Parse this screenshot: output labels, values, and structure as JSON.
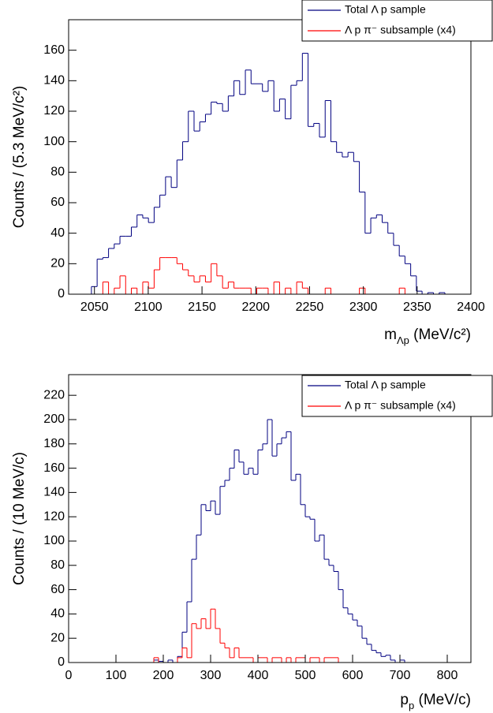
{
  "chart_data": [
    {
      "type": "histogram",
      "y_label": "Counts / (5.3 MeV/c²)",
      "x_label": [
        "m",
        "Λp",
        " (MeV/c²)"
      ],
      "bins": [
        2026.0,
        2031.3,
        2036.6,
        2041.9,
        2047.2,
        2052.5,
        2057.8,
        2063.1,
        2068.4,
        2073.7,
        2079.0,
        2084.3,
        2089.6,
        2094.9,
        2100.2,
        2105.5,
        2110.8,
        2116.1,
        2121.4,
        2126.7,
        2132.0,
        2137.3,
        2142.6,
        2147.9,
        2153.2,
        2158.5,
        2163.8,
        2169.1,
        2174.4,
        2179.7,
        2185.0,
        2190.3,
        2195.6,
        2200.9,
        2206.2,
        2211.5,
        2216.8,
        2222.1,
        2227.4,
        2232.7,
        2238.0,
        2243.3,
        2248.6,
        2253.9,
        2259.2,
        2264.5,
        2269.8,
        2275.1,
        2280.4,
        2285.7,
        2291.0,
        2296.3,
        2301.6,
        2306.9,
        2312.2,
        2317.5,
        2322.8,
        2328.1,
        2333.4,
        2338.7,
        2344.0,
        2349.3,
        2354.6,
        2359.9,
        2365.2,
        2370.5,
        2375.8,
        2381.1,
        2386.4,
        2391.7,
        2397.0
      ],
      "series": [
        {
          "name": "Total Λ p sample",
          "color": "#000080",
          "values": [
            0,
            0,
            0,
            0,
            5,
            23,
            24,
            30,
            33,
            38,
            38,
            44,
            52,
            50,
            47,
            57,
            65,
            77,
            70,
            88,
            100,
            120,
            107,
            113,
            118,
            126,
            125,
            120,
            130,
            140,
            131,
            147,
            138,
            138,
            133,
            140,
            120,
            128,
            115,
            137,
            140,
            158,
            110,
            112,
            103,
            127,
            100,
            93,
            90,
            93,
            87,
            67,
            40,
            50,
            52,
            47,
            40,
            32,
            25,
            20,
            12,
            2,
            0,
            1,
            0,
            1,
            0,
            0,
            0,
            0
          ]
        },
        {
          "name": "Λ p π⁻ subsample (x4)",
          "color": "#ff0000",
          "values": [
            0,
            0,
            0,
            0,
            0,
            0,
            8,
            0,
            4,
            12,
            0,
            4,
            0,
            8,
            4,
            16,
            24,
            24,
            24,
            20,
            16,
            12,
            8,
            12,
            8,
            20,
            12,
            4,
            8,
            4,
            4,
            4,
            0,
            4,
            4,
            0,
            8,
            0,
            4,
            0,
            8,
            4,
            0,
            0,
            0,
            4,
            0,
            0,
            0,
            0,
            0,
            4,
            0,
            0,
            0,
            0,
            0,
            0,
            4,
            0,
            0,
            0,
            0,
            0,
            0,
            0,
            0,
            0,
            0,
            0
          ]
        }
      ],
      "xlim": [
        2026,
        2400
      ],
      "xticks": [
        2050,
        2100,
        2150,
        2200,
        2250,
        2300,
        2350,
        2400
      ],
      "ylim": [
        0,
        180
      ],
      "yticks": [
        0,
        20,
        40,
        60,
        80,
        100,
        120,
        140,
        160
      ],
      "legend": "top-right"
    },
    {
      "type": "histogram",
      "y_label": "Counts / (10 MeV/c)",
      "x_label": [
        "p",
        "p",
        " (MeV/c)"
      ],
      "bins": [
        0,
        10,
        20,
        30,
        40,
        50,
        60,
        70,
        80,
        90,
        100,
        110,
        120,
        130,
        140,
        150,
        160,
        170,
        180,
        190,
        200,
        210,
        220,
        230,
        240,
        250,
        260,
        270,
        280,
        290,
        300,
        310,
        320,
        330,
        340,
        350,
        360,
        370,
        380,
        390,
        400,
        410,
        420,
        430,
        440,
        450,
        460,
        470,
        480,
        490,
        500,
        510,
        520,
        530,
        540,
        550,
        560,
        570,
        580,
        590,
        600,
        610,
        620,
        630,
        640,
        650,
        660,
        670,
        680,
        690,
        700,
        710,
        720,
        730,
        740,
        750,
        760,
        770,
        780,
        790,
        800,
        810,
        820,
        830,
        840,
        850
      ],
      "series": [
        {
          "name": "Total Λ p sample",
          "color": "#000080",
          "values": [
            0,
            0,
            0,
            0,
            0,
            0,
            0,
            0,
            0,
            0,
            0,
            0,
            0,
            0,
            0,
            0,
            0,
            0,
            2,
            1,
            0,
            2,
            0,
            5,
            25,
            50,
            85,
            105,
            130,
            125,
            133,
            122,
            145,
            150,
            160,
            175,
            165,
            155,
            160,
            155,
            175,
            180,
            200,
            170,
            180,
            185,
            190,
            150,
            155,
            130,
            120,
            118,
            100,
            105,
            85,
            80,
            75,
            60,
            45,
            40,
            35,
            30,
            20,
            15,
            10,
            8,
            5,
            6,
            2,
            0,
            2,
            0,
            0,
            0,
            0,
            0,
            0,
            0,
            0,
            0,
            0,
            0,
            0,
            0,
            0
          ]
        },
        {
          "name": "Λ p π⁻ subsample (x4)",
          "color": "#ff0000",
          "values": [
            0,
            0,
            0,
            0,
            0,
            0,
            0,
            0,
            0,
            0,
            0,
            0,
            0,
            0,
            0,
            0,
            0,
            0,
            4,
            0,
            0,
            0,
            0,
            4,
            12,
            4,
            32,
            28,
            36,
            28,
            44,
            28,
            16,
            12,
            4,
            12,
            4,
            4,
            4,
            0,
            4,
            4,
            0,
            4,
            4,
            0,
            4,
            0,
            4,
            4,
            0,
            4,
            4,
            0,
            4,
            4,
            4,
            0,
            0,
            0,
            0,
            0,
            0,
            0,
            0,
            0,
            0,
            0,
            0,
            0,
            0,
            0,
            0,
            0,
            0,
            0,
            0,
            0,
            0,
            0,
            0,
            0,
            0,
            0,
            0
          ]
        }
      ],
      "xlim": [
        0,
        850
      ],
      "xticks": [
        0,
        100,
        200,
        300,
        400,
        500,
        600,
        700,
        800
      ],
      "ylim": [
        0,
        237
      ],
      "yticks": [
        0,
        20,
        40,
        60,
        80,
        100,
        120,
        140,
        160,
        180,
        200,
        220
      ],
      "legend": "top-right"
    }
  ]
}
